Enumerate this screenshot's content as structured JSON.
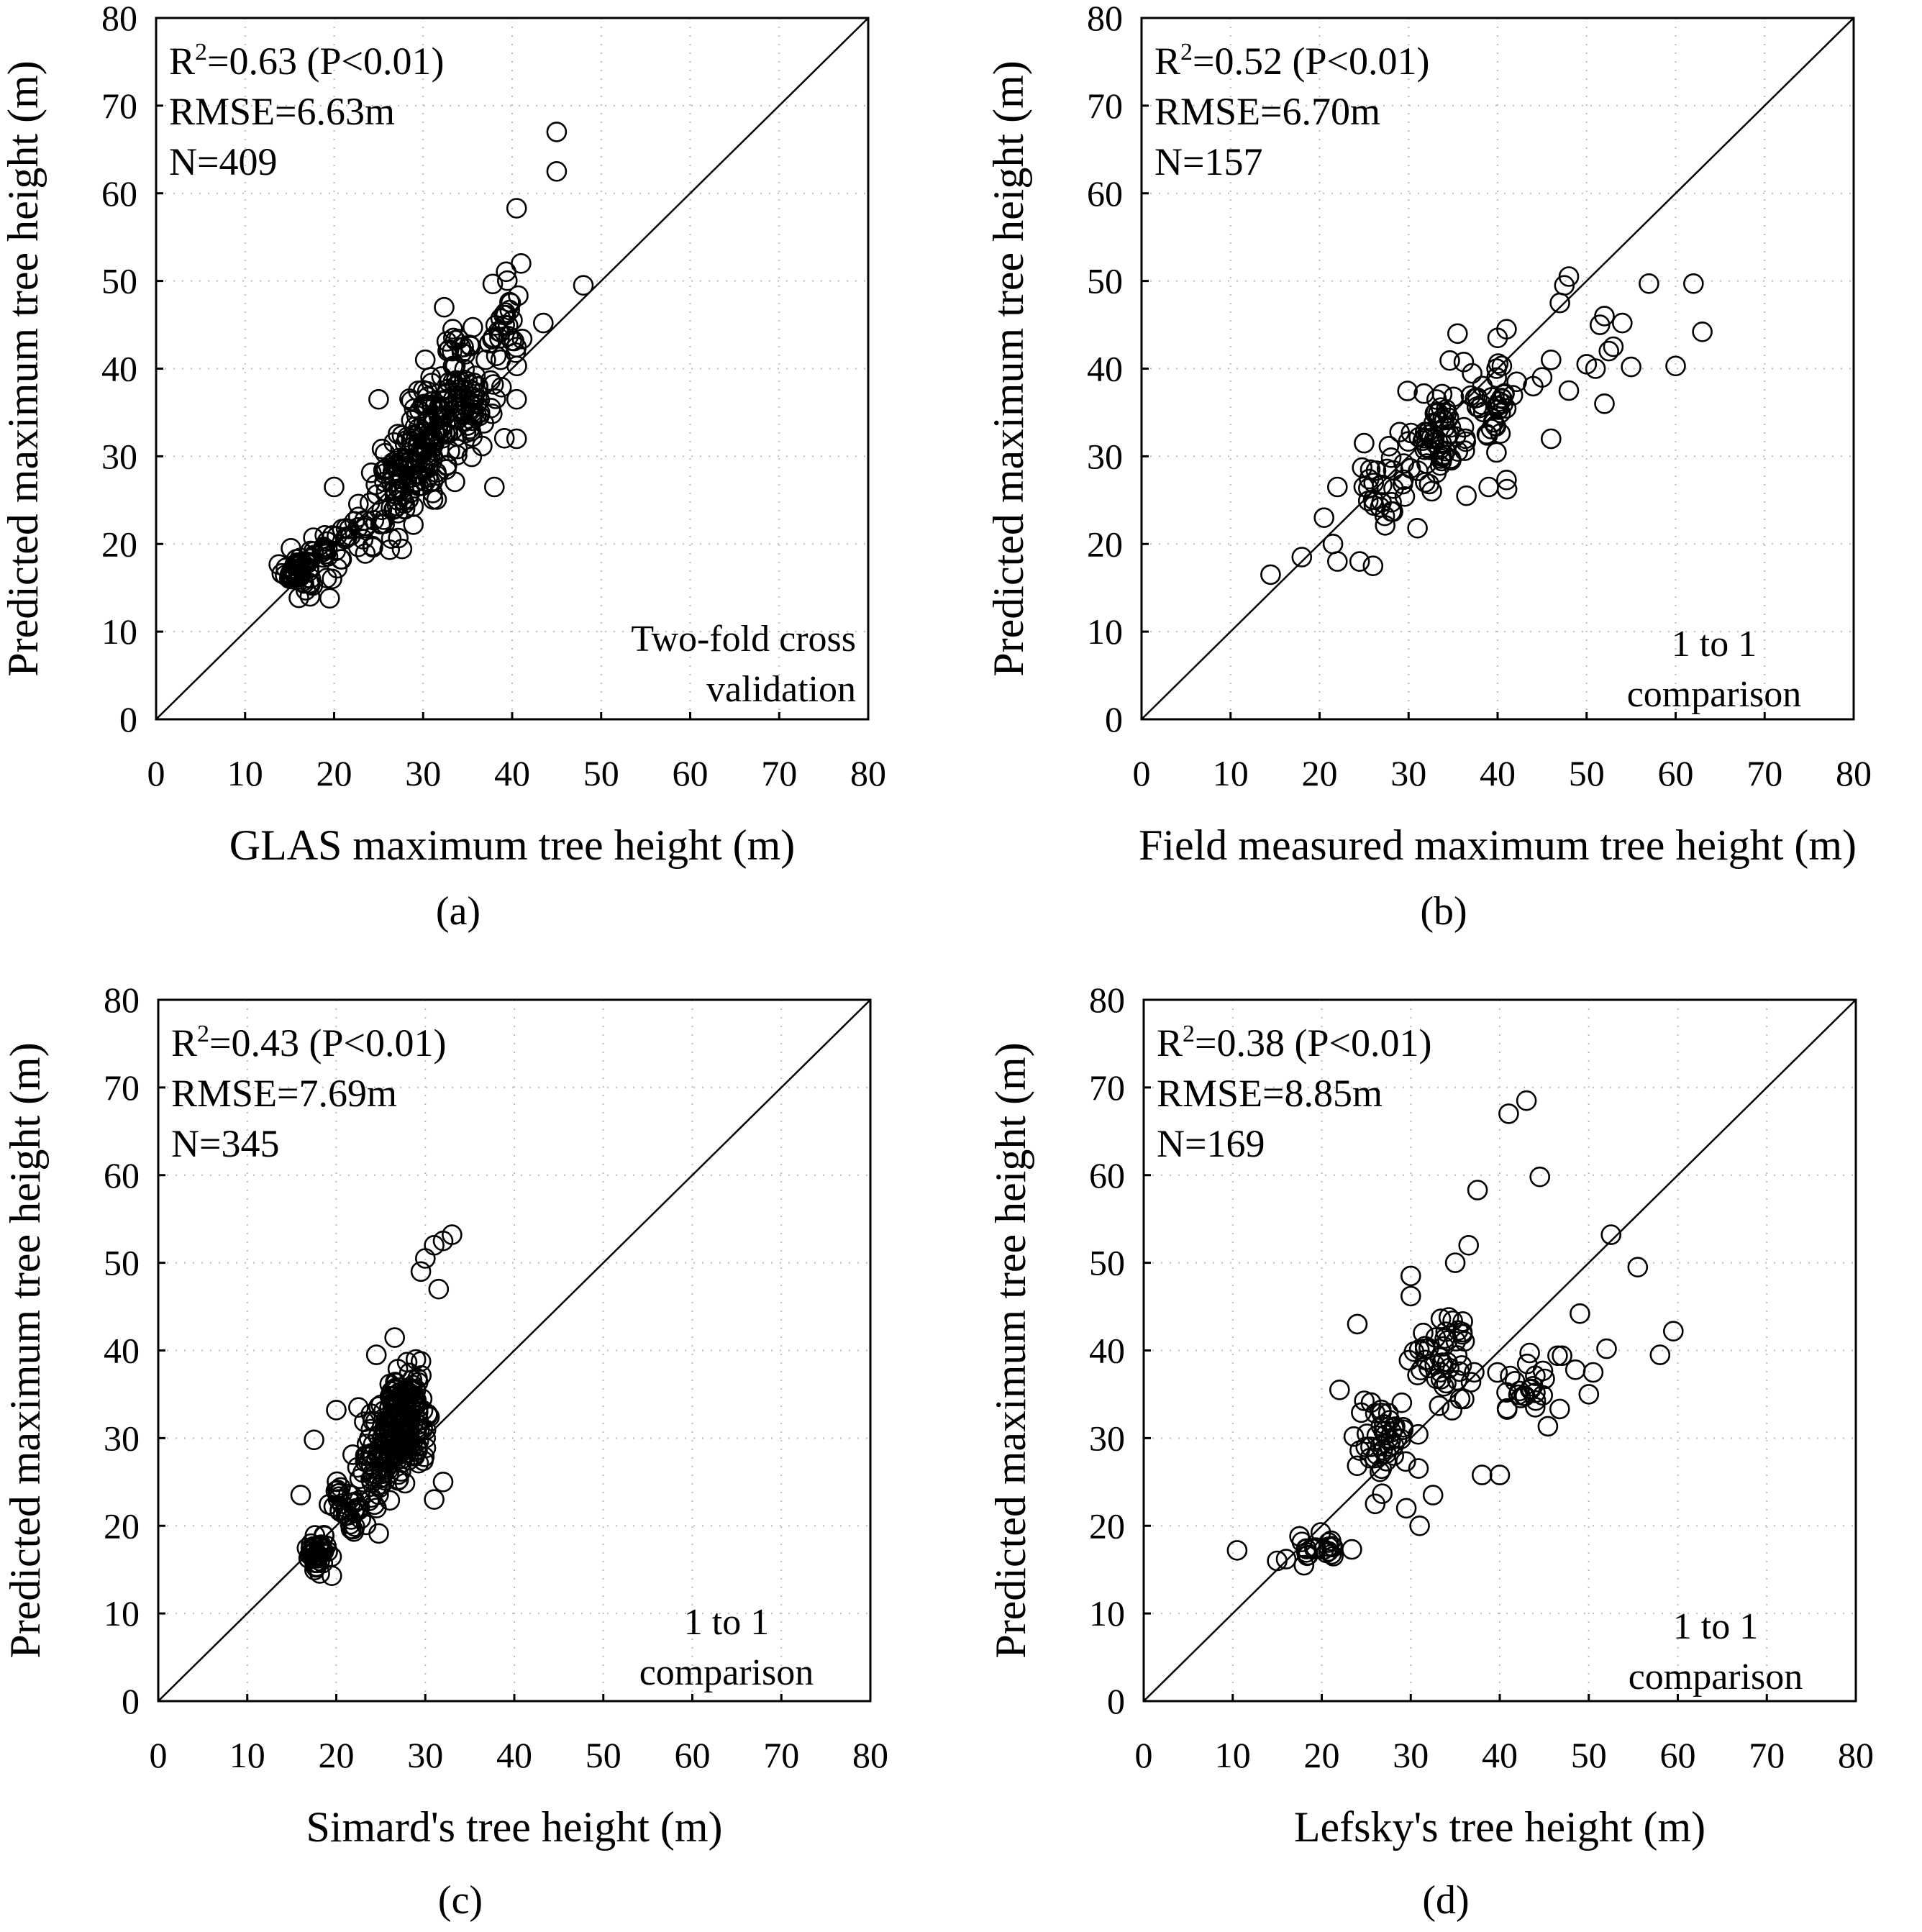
{
  "chart_data": [
    {
      "panel_label": "(a)",
      "type": "scatter",
      "xlabel": "GLAS maximum tree height (m)",
      "ylabel": "Predicted maximum tree height (m)",
      "xlim": [
        0,
        80
      ],
      "ylim": [
        0,
        80
      ],
      "xticks": [
        0,
        10,
        20,
        30,
        40,
        50,
        60,
        70,
        80
      ],
      "yticks": [
        0,
        10,
        20,
        30,
        40,
        50,
        60,
        70,
        80
      ],
      "grid": true,
      "reference_line": "1:1",
      "stats": {
        "r2_line": "=0.63 (P<0.01)",
        "rmse": "RMSE=6.63m",
        "n": "N=409"
      },
      "note_lines": [
        "Two-fold cross",
        "validation"
      ],
      "clusters": [
        {
          "center": [
            16,
            17
          ],
          "spread": [
            1.6,
            2.0
          ],
          "count": 50
        },
        {
          "center": [
            19,
            19
          ],
          "spread": [
            2.0,
            2.5
          ],
          "count": 25
        },
        {
          "center": [
            23,
            22
          ],
          "spread": [
            2.4,
            3.0
          ],
          "count": 25
        },
        {
          "center": [
            27,
            27
          ],
          "spread": [
            2.5,
            4.5
          ],
          "count": 70
        },
        {
          "center": [
            31,
            32
          ],
          "spread": [
            2.5,
            5.5
          ],
          "count": 110
        },
        {
          "center": [
            35,
            38
          ],
          "spread": [
            2.5,
            6.0
          ],
          "count": 85
        },
        {
          "center": [
            39,
            44
          ],
          "spread": [
            1.8,
            5.0
          ],
          "count": 30
        }
      ],
      "points": [
        [
          45,
          67
        ],
        [
          45,
          62.5
        ],
        [
          40.5,
          58.3
        ],
        [
          48,
          49.5
        ],
        [
          43.5,
          45.2
        ],
        [
          41,
          52
        ],
        [
          40.5,
          32
        ],
        [
          40.5,
          36.5
        ],
        [
          25,
          36.5
        ],
        [
          20,
          26.5
        ],
        [
          19.5,
          13.8
        ],
        [
          38,
          26.5
        ]
      ]
    },
    {
      "panel_label": "(b)",
      "type": "scatter",
      "xlabel": "Field measured maximum tree height (m)",
      "ylabel": "Predicted maximum tree height (m)",
      "xlim": [
        0,
        80
      ],
      "ylim": [
        0,
        80
      ],
      "xticks": [
        0,
        10,
        20,
        30,
        40,
        50,
        60,
        70,
        80
      ],
      "yticks": [
        0,
        10,
        20,
        30,
        40,
        50,
        60,
        70,
        80
      ],
      "grid": true,
      "reference_line": "1:1",
      "stats": {
        "r2_line": "=0.52 (P<0.01)",
        "rmse": "RMSE=6.70m",
        "n": "N=157"
      },
      "note_lines": [
        "1 to 1",
        "comparison"
      ],
      "clusters": [
        {
          "center": [
            27,
            26
          ],
          "spread": [
            2.5,
            4.0
          ],
          "count": 25
        },
        {
          "center": [
            33,
            32
          ],
          "spread": [
            3.0,
            4.5
          ],
          "count": 55
        },
        {
          "center": [
            39,
            36
          ],
          "spread": [
            3.0,
            5.0
          ],
          "count": 45
        }
      ],
      "points": [
        [
          14.5,
          16.5
        ],
        [
          18,
          18.5
        ],
        [
          22,
          18
        ],
        [
          24.5,
          18
        ],
        [
          26,
          17.5
        ],
        [
          20.5,
          23
        ],
        [
          22,
          26.5
        ],
        [
          21.5,
          20
        ],
        [
          47,
          47.5
        ],
        [
          48,
          50.5
        ],
        [
          47.5,
          49.5
        ],
        [
          45,
          39
        ],
        [
          46,
          41
        ],
        [
          44,
          38
        ],
        [
          46,
          32
        ],
        [
          48,
          37.5
        ],
        [
          51,
          40
        ],
        [
          51.5,
          45
        ],
        [
          52,
          46
        ],
        [
          52.5,
          42
        ],
        [
          53,
          42.5
        ],
        [
          54,
          45.2
        ],
        [
          55,
          40.2
        ],
        [
          57,
          49.7
        ],
        [
          60,
          40.3
        ],
        [
          62,
          49.7
        ],
        [
          63,
          44.2
        ],
        [
          52,
          36
        ],
        [
          50,
          40.5
        ],
        [
          41,
          27.3
        ],
        [
          39,
          26.5
        ],
        [
          31,
          21.8
        ],
        [
          36.5,
          25.5
        ],
        [
          25,
          31.5
        ],
        [
          35.5,
          44
        ],
        [
          40,
          43.5
        ],
        [
          41,
          44.5
        ]
      ]
    },
    {
      "panel_label": "(c)",
      "type": "scatter",
      "xlabel": "Simard's tree height (m)",
      "ylabel": "Predicted maximum tree height (m)",
      "xlim": [
        0,
        80
      ],
      "ylim": [
        0,
        80
      ],
      "xticks": [
        0,
        10,
        20,
        30,
        40,
        50,
        60,
        70,
        80
      ],
      "yticks": [
        0,
        10,
        20,
        30,
        40,
        50,
        60,
        70,
        80
      ],
      "grid": true,
      "reference_line": "1:1",
      "stats": {
        "r2_line": "=0.43 (P<0.01)",
        "rmse": "RMSE=7.69m",
        "n": "N=345"
      },
      "note_lines": [
        "1 to 1",
        "comparison"
      ],
      "clusters": [
        {
          "center": [
            18,
            17
          ],
          "spread": [
            1.2,
            1.8
          ],
          "count": 40
        },
        {
          "center": [
            21.5,
            22
          ],
          "spread": [
            1.8,
            3.0
          ],
          "count": 40
        },
        {
          "center": [
            24.5,
            28
          ],
          "spread": [
            1.8,
            5.0
          ],
          "count": 60
        },
        {
          "center": [
            27,
            31
          ],
          "spread": [
            1.5,
            5.5
          ],
          "count": 110
        },
        {
          "center": [
            29,
            33
          ],
          "spread": [
            1.4,
            6.5
          ],
          "count": 60
        }
      ],
      "points": [
        [
          16,
          23.5
        ],
        [
          17.5,
          29.8
        ],
        [
          19.5,
          14.3
        ],
        [
          31,
          52
        ],
        [
          32,
          52.5
        ],
        [
          33,
          53.2
        ],
        [
          30,
          50.5
        ],
        [
          31.5,
          47
        ],
        [
          29.5,
          49
        ],
        [
          32,
          25
        ],
        [
          31,
          23
        ],
        [
          20,
          33.2
        ],
        [
          22.5,
          33.5
        ],
        [
          24.5,
          39.5
        ]
      ]
    },
    {
      "panel_label": "(d)",
      "type": "scatter",
      "xlabel": "Lefsky's tree height (m)",
      "ylabel": "Predicted maximum tree height (m)",
      "xlim": [
        0,
        80
      ],
      "ylim": [
        0,
        80
      ],
      "xticks": [
        0,
        10,
        20,
        30,
        40,
        50,
        60,
        70,
        80
      ],
      "yticks": [
        0,
        10,
        20,
        30,
        40,
        50,
        60,
        70,
        80
      ],
      "grid": true,
      "reference_line": "1:1",
      "stats": {
        "r2_line": "=0.38 (P<0.01)",
        "rmse": "RMSE=8.85m",
        "n": "N=169"
      },
      "note_lines": [
        "1 to 1",
        "comparison"
      ],
      "clusters": [
        {
          "center": [
            20,
            17.5
          ],
          "spread": [
            2.5,
            1.5
          ],
          "count": 20
        },
        {
          "center": [
            27,
            30
          ],
          "spread": [
            3.0,
            4.5
          ],
          "count": 45
        },
        {
          "center": [
            34,
            38
          ],
          "spread": [
            3.5,
            6.0
          ],
          "count": 45
        },
        {
          "center": [
            43,
            36
          ],
          "spread": [
            3.0,
            3.5
          ],
          "count": 25
        }
      ],
      "points": [
        [
          10.5,
          17.2
        ],
        [
          15,
          16
        ],
        [
          16,
          16.2
        ],
        [
          17.5,
          18.8
        ],
        [
          18,
          15.5
        ],
        [
          43,
          68.5
        ],
        [
          41,
          67
        ],
        [
          44.5,
          59.8
        ],
        [
          37.5,
          58.3
        ],
        [
          36.5,
          52
        ],
        [
          52.5,
          53.2
        ],
        [
          55.5,
          49.5
        ],
        [
          49,
          44.2
        ],
        [
          52,
          40.2
        ],
        [
          58,
          39.5
        ],
        [
          59.5,
          42.2
        ],
        [
          47,
          39.4
        ],
        [
          50,
          35
        ],
        [
          50.5,
          37.5
        ],
        [
          48.5,
          37.8
        ],
        [
          46.5,
          39.4
        ],
        [
          26,
          22.5
        ],
        [
          31,
          20
        ],
        [
          29.5,
          22
        ],
        [
          32.5,
          23.5
        ],
        [
          40,
          25.8
        ],
        [
          38,
          25.8
        ],
        [
          22,
          35.5
        ],
        [
          24,
          43
        ],
        [
          30,
          48.5
        ],
        [
          35,
          50
        ],
        [
          30,
          46.2
        ]
      ]
    }
  ]
}
